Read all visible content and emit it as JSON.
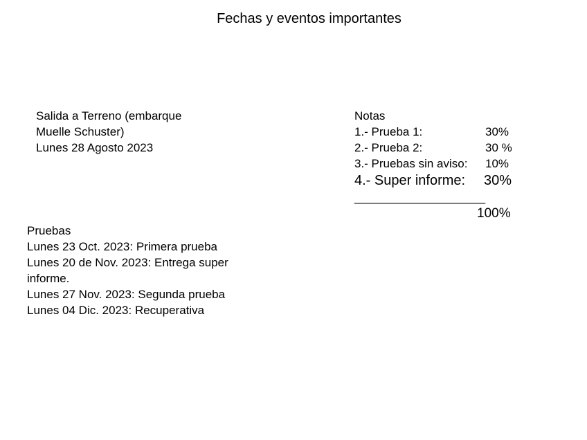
{
  "title": "Fechas y eventos importantes",
  "salida": {
    "lines": [
      "Salida a Terreno (embarque",
      "Muelle Schuster)",
      "Lunes 28 Agosto 2023"
    ]
  },
  "notas": {
    "heading": "Notas",
    "items": [
      {
        "label": "1.- Prueba 1:",
        "value": "30%"
      },
      {
        "label": "2.- Prueba 2:",
        "value": "30 %"
      },
      {
        "label": "3.- Pruebas sin aviso:",
        "value": "10%"
      },
      {
        "label": "4.- Super informe:",
        "value": "30%"
      }
    ],
    "separator": "____________________",
    "total": "100%"
  },
  "pruebas": {
    "heading": "Pruebas",
    "lines": [
      "Lunes 23 Oct. 2023: Primera prueba",
      "Lunes 20 de Nov. 2023: Entrega super",
      "informe.",
      "Lunes 27 Nov. 2023: Segunda prueba",
      "Lunes 04 Dic. 2023: Recuperativa"
    ]
  }
}
